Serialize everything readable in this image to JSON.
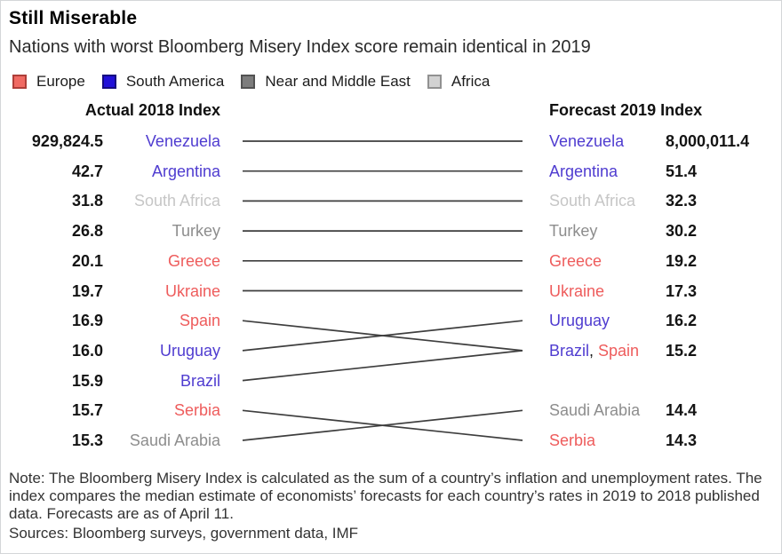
{
  "header": {
    "title": "Still Miserable",
    "subtitle": "Nations with worst Bloomberg Misery Index score remain identical in 2019"
  },
  "legend": {
    "items": [
      {
        "label": "Europe",
        "region": "Europe"
      },
      {
        "label": "South America",
        "region": "South America"
      },
      {
        "label": "Near and Middle East",
        "region": "Near and Middle East"
      },
      {
        "label": "Africa",
        "region": "Africa"
      }
    ]
  },
  "regions": {
    "Europe": {
      "swatch": "#f06a63",
      "swatch_border": "#ae3e39",
      "text": "#ee5c5c"
    },
    "South America": {
      "swatch": "#2110d8",
      "swatch_border": "#150a80",
      "text": "#4f3cd0"
    },
    "Near and Middle East": {
      "swatch": "#7d7d7d",
      "swatch_border": "#525252",
      "text": "#8d8d8d"
    },
    "Africa": {
      "swatch": "#d2d2d2",
      "swatch_border": "#919191",
      "text": "#c6c6c6"
    }
  },
  "columns": {
    "left": "Actual 2018 Index",
    "right": "Forecast 2019 Index"
  },
  "chart_data": {
    "type": "slope",
    "left_axis_title": "Actual 2018 Index",
    "right_axis_title": "Forecast 2019 Index",
    "line_color": "#3e3e3e",
    "separator_color": "#1a1a1a",
    "left": [
      {
        "display": "929,824.5",
        "value": 929824.5,
        "countries": [
          {
            "name": "Venezuela",
            "region": "South America"
          }
        ]
      },
      {
        "display": "42.7",
        "value": 42.7,
        "countries": [
          {
            "name": "Argentina",
            "region": "South America"
          }
        ]
      },
      {
        "display": "31.8",
        "value": 31.8,
        "countries": [
          {
            "name": "South Africa",
            "region": "Africa"
          }
        ]
      },
      {
        "display": "26.8",
        "value": 26.8,
        "countries": [
          {
            "name": "Turkey",
            "region": "Near and Middle East"
          }
        ]
      },
      {
        "display": "20.1",
        "value": 20.1,
        "countries": [
          {
            "name": "Greece",
            "region": "Europe"
          }
        ]
      },
      {
        "display": "19.7",
        "value": 19.7,
        "countries": [
          {
            "name": "Ukraine",
            "region": "Europe"
          }
        ]
      },
      {
        "display": "16.9",
        "value": 16.9,
        "countries": [
          {
            "name": "Spain",
            "region": "Europe"
          }
        ]
      },
      {
        "display": "16.0",
        "value": 16.0,
        "countries": [
          {
            "name": "Uruguay",
            "region": "South America"
          }
        ]
      },
      {
        "display": "15.9",
        "value": 15.9,
        "countries": [
          {
            "name": "Brazil",
            "region": "South America"
          }
        ]
      },
      {
        "display": "15.7",
        "value": 15.7,
        "countries": [
          {
            "name": "Serbia",
            "region": "Europe"
          }
        ]
      },
      {
        "display": "15.3",
        "value": 15.3,
        "countries": [
          {
            "name": "Saudi Arabia",
            "region": "Near and Middle East"
          }
        ]
      }
    ],
    "right": [
      {
        "slot": 0,
        "display": "8,000,011.4",
        "value": 8000011.4,
        "countries": [
          {
            "name": "Venezuela",
            "region": "South America"
          }
        ]
      },
      {
        "slot": 1,
        "display": "51.4",
        "value": 51.4,
        "countries": [
          {
            "name": "Argentina",
            "region": "South America"
          }
        ]
      },
      {
        "slot": 2,
        "display": "32.3",
        "value": 32.3,
        "countries": [
          {
            "name": "South Africa",
            "region": "Africa"
          }
        ]
      },
      {
        "slot": 3,
        "display": "30.2",
        "value": 30.2,
        "countries": [
          {
            "name": "Turkey",
            "region": "Near and Middle East"
          }
        ]
      },
      {
        "slot": 4,
        "display": "19.2",
        "value": 19.2,
        "countries": [
          {
            "name": "Greece",
            "region": "Europe"
          }
        ]
      },
      {
        "slot": 5,
        "display": "17.3",
        "value": 17.3,
        "countries": [
          {
            "name": "Ukraine",
            "region": "Europe"
          }
        ]
      },
      {
        "slot": 6,
        "display": "16.2",
        "value": 16.2,
        "countries": [
          {
            "name": "Uruguay",
            "region": "South America"
          }
        ]
      },
      {
        "slot": 7,
        "display": "15.2",
        "value": 15.2,
        "countries": [
          {
            "name": "Brazil",
            "region": "South America"
          },
          {
            "name": "Spain",
            "region": "Europe"
          }
        ]
      },
      {
        "slot": 9,
        "display": "14.4",
        "value": 14.4,
        "countries": [
          {
            "name": "Saudi Arabia",
            "region": "Near and Middle East"
          }
        ]
      },
      {
        "slot": 10,
        "display": "14.3",
        "value": 14.3,
        "countries": [
          {
            "name": "Serbia",
            "region": "Europe"
          }
        ]
      }
    ],
    "links": [
      {
        "country": "Venezuela",
        "left_row": 0,
        "right_slot": 0
      },
      {
        "country": "Argentina",
        "left_row": 1,
        "right_slot": 1
      },
      {
        "country": "South Africa",
        "left_row": 2,
        "right_slot": 2
      },
      {
        "country": "Turkey",
        "left_row": 3,
        "right_slot": 3
      },
      {
        "country": "Greece",
        "left_row": 4,
        "right_slot": 4
      },
      {
        "country": "Ukraine",
        "left_row": 5,
        "right_slot": 5
      },
      {
        "country": "Spain",
        "left_row": 6,
        "right_slot": 7
      },
      {
        "country": "Uruguay",
        "left_row": 7,
        "right_slot": 6
      },
      {
        "country": "Brazil",
        "left_row": 8,
        "right_slot": 7
      },
      {
        "country": "Serbia",
        "left_row": 9,
        "right_slot": 10
      },
      {
        "country": "Saudi Arabia",
        "left_row": 10,
        "right_slot": 9
      }
    ]
  },
  "footer": {
    "note": "Note: The Bloomberg Misery Index is calculated as the sum of a country’s inflation and unemployment rates. The index compares the median estimate of economists’ forecasts for each country’s rates in 2019 to 2018 published data. Forecasts are as of April 11.",
    "sources": "Sources: Bloomberg surveys, government data, IMF"
  }
}
